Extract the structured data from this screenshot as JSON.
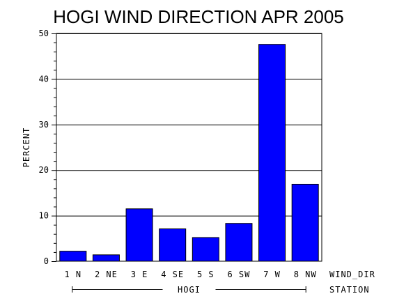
{
  "chart_data": {
    "type": "bar",
    "title": "HOGI WIND DIRECTION APR 2005",
    "ylabel": "PERCENT",
    "xlabel": "WIND_DIR",
    "group_axis_label": "STATION",
    "group_label": "HOGI",
    "categories": [
      "1 N",
      "2 NE",
      "3 E",
      "4 SE",
      "5 S",
      "6 SW",
      "7 W",
      "8 NW"
    ],
    "values": [
      2.2,
      1.4,
      11.5,
      7.1,
      5.2,
      8.3,
      47.6,
      16.9
    ],
    "ylim": [
      0,
      50
    ],
    "yticks": [
      0,
      10,
      20,
      30,
      40,
      50
    ],
    "grid": true,
    "bar_color": "#0000ff"
  }
}
